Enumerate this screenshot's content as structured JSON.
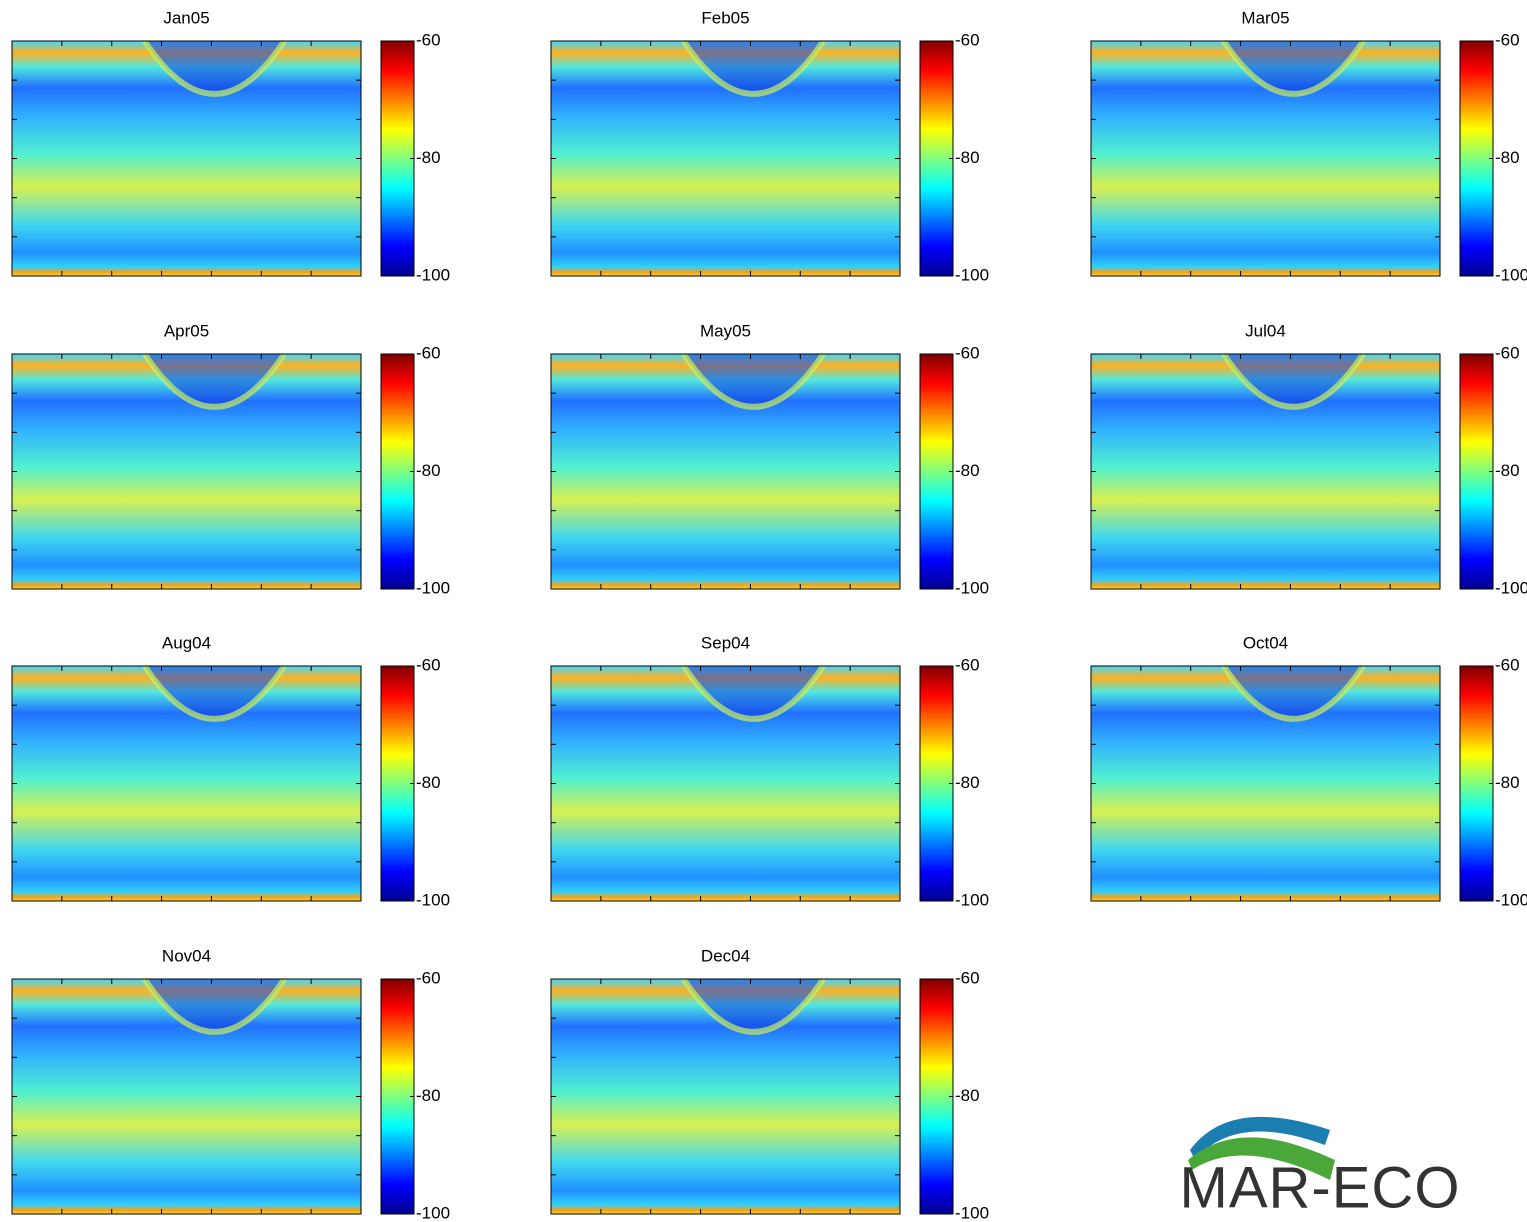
{
  "chart_data": [
    {
      "type": "heatmap",
      "title": "Jan05",
      "colormap": "jet",
      "clim": [
        -100,
        -60
      ],
      "cticks": [
        -60,
        -80,
        -100
      ]
    },
    {
      "type": "heatmap",
      "title": "Feb05",
      "colormap": "jet",
      "clim": [
        -100,
        -60
      ],
      "cticks": [
        -60,
        -80,
        -100
      ]
    },
    {
      "type": "heatmap",
      "title": "Mar05",
      "colormap": "jet",
      "clim": [
        -100,
        -60
      ],
      "cticks": [
        -60,
        -80,
        -100
      ]
    },
    {
      "type": "heatmap",
      "title": "Apr05",
      "colormap": "jet",
      "clim": [
        -100,
        -60
      ],
      "cticks": [
        -60,
        -80,
        -100
      ]
    },
    {
      "type": "heatmap",
      "title": "May05",
      "colormap": "jet",
      "clim": [
        -100,
        -60
      ],
      "cticks": [
        -60,
        -80,
        -100
      ]
    },
    {
      "type": "heatmap",
      "title": "Jul04",
      "colormap": "jet",
      "clim": [
        -100,
        -60
      ],
      "cticks": [
        -60,
        -80,
        -100
      ]
    },
    {
      "type": "heatmap",
      "title": "Aug04",
      "colormap": "jet",
      "clim": [
        -100,
        -60
      ],
      "cticks": [
        -60,
        -80,
        -100
      ]
    },
    {
      "type": "heatmap",
      "title": "Sep04",
      "colormap": "jet",
      "clim": [
        -100,
        -60
      ],
      "cticks": [
        -60,
        -80,
        -100
      ]
    },
    {
      "type": "heatmap",
      "title": "Oct04",
      "colormap": "jet",
      "clim": [
        -100,
        -60
      ],
      "cticks": [
        -60,
        -80,
        -100
      ]
    },
    {
      "type": "heatmap",
      "title": "Nov04",
      "colormap": "jet",
      "clim": [
        -100,
        -60
      ],
      "cticks": [
        -60,
        -80,
        -100
      ]
    },
    {
      "type": "heatmap",
      "title": "Dec04",
      "colormap": "jet",
      "clim": [
        -100,
        -60
      ],
      "cticks": [
        -60,
        -80,
        -100
      ]
    }
  ],
  "logo": {
    "text": "MAR-ECO"
  }
}
